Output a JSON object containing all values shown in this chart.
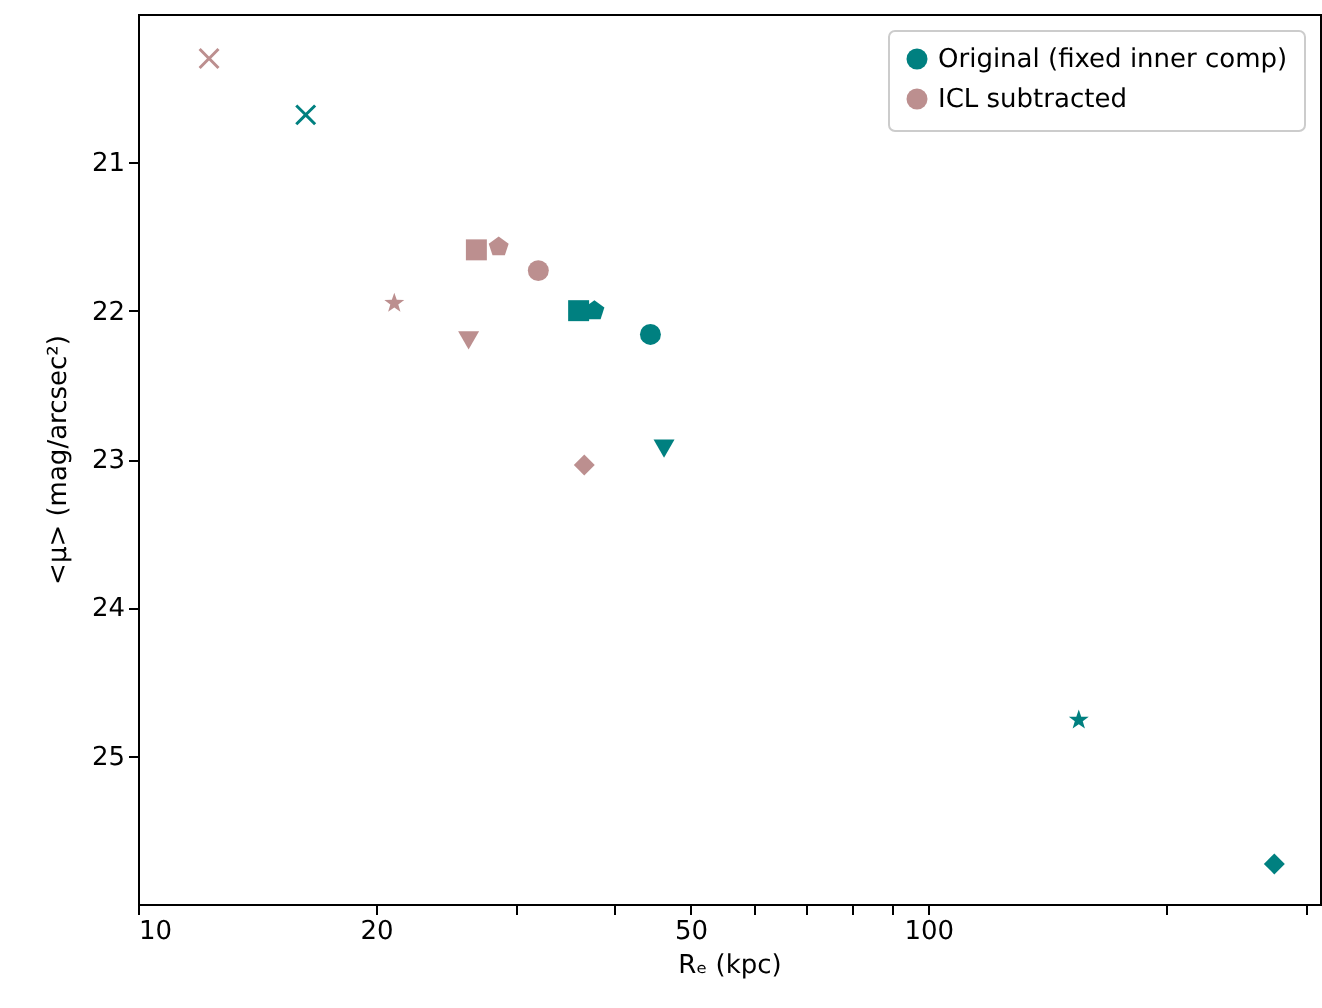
{
  "chart_data": {
    "type": "scatter",
    "xlabel": "Rₑ (kpc)",
    "ylabel": "<μ> (mag/arcsec²)",
    "log": "x",
    "grid": false,
    "legend": "top right",
    "xlim": [
      10,
      313
    ],
    "xticks": [
      10,
      20,
      {
        "value": 30,
        "label": null
      },
      {
        "value": 40,
        "label": null
      },
      50,
      {
        "value": 60,
        "label": null
      },
      {
        "value": 70,
        "label": null
      },
      {
        "value": 80,
        "label": null
      },
      {
        "value": 90,
        "label": null
      },
      100,
      {
        "value": 200,
        "label": null
      },
      {
        "value": 300,
        "label": null
      }
    ],
    "ylim": [
      26,
      20
    ],
    "yticks": [
      21,
      22,
      23,
      24,
      25
    ],
    "series": [
      {
        "name": "Original (fixed inner comp)",
        "color": "#008080",
        "marker": "circle",
        "x": [
          44.5
        ],
        "values": [
          22.16
        ]
      },
      {
        "name": "ICL subtracted",
        "color": "#bc8f8f",
        "marker": "circle",
        "x": [
          32.1
        ],
        "values": [
          21.73
        ]
      },
      {
        "color": "#008080",
        "marker": "cross",
        "x": [
          16.3
        ],
        "values": [
          20.68
        ]
      },
      {
        "color": "#008080",
        "marker": "square",
        "x": [
          36.1
        ],
        "values": [
          22.0
        ]
      },
      {
        "color": "#008080",
        "x": [
          37.8
        ],
        "values": [
          22.0
        ]
      },
      {
        "color": "#008080",
        "marker": "triangle-down",
        "x": [
          46.3
        ],
        "values": [
          22.93
        ]
      },
      {
        "color": "#008080",
        "marker": "star",
        "x": [
          155
        ],
        "values": [
          24.76
        ]
      },
      {
        "color": "#008080",
        "marker": "diamond",
        "x": [
          274
        ],
        "values": [
          25.73
        ]
      },
      {
        "color": "#bc8f8f",
        "marker": "cross",
        "x": [
          12.3
        ],
        "values": [
          20.3
        ]
      },
      {
        "color": "#bc8f8f",
        "marker": "star",
        "x": [
          21.1
        ],
        "values": [
          21.95
        ]
      },
      {
        "color": "#bc8f8f",
        "marker": "square",
        "x": [
          26.8
        ],
        "values": [
          21.59
        ]
      },
      {
        "color": "#bc8f8f",
        "x": [
          28.6
        ],
        "values": [
          21.57
        ]
      },
      {
        "color": "#bc8f8f",
        "marker": "triangle-down",
        "x": [
          26.2
        ],
        "values": [
          22.2
        ]
      },
      {
        "color": "#bc8f8f",
        "marker": "diamond",
        "x": [
          36.7
        ],
        "values": [
          23.04
        ]
      }
    ]
  }
}
